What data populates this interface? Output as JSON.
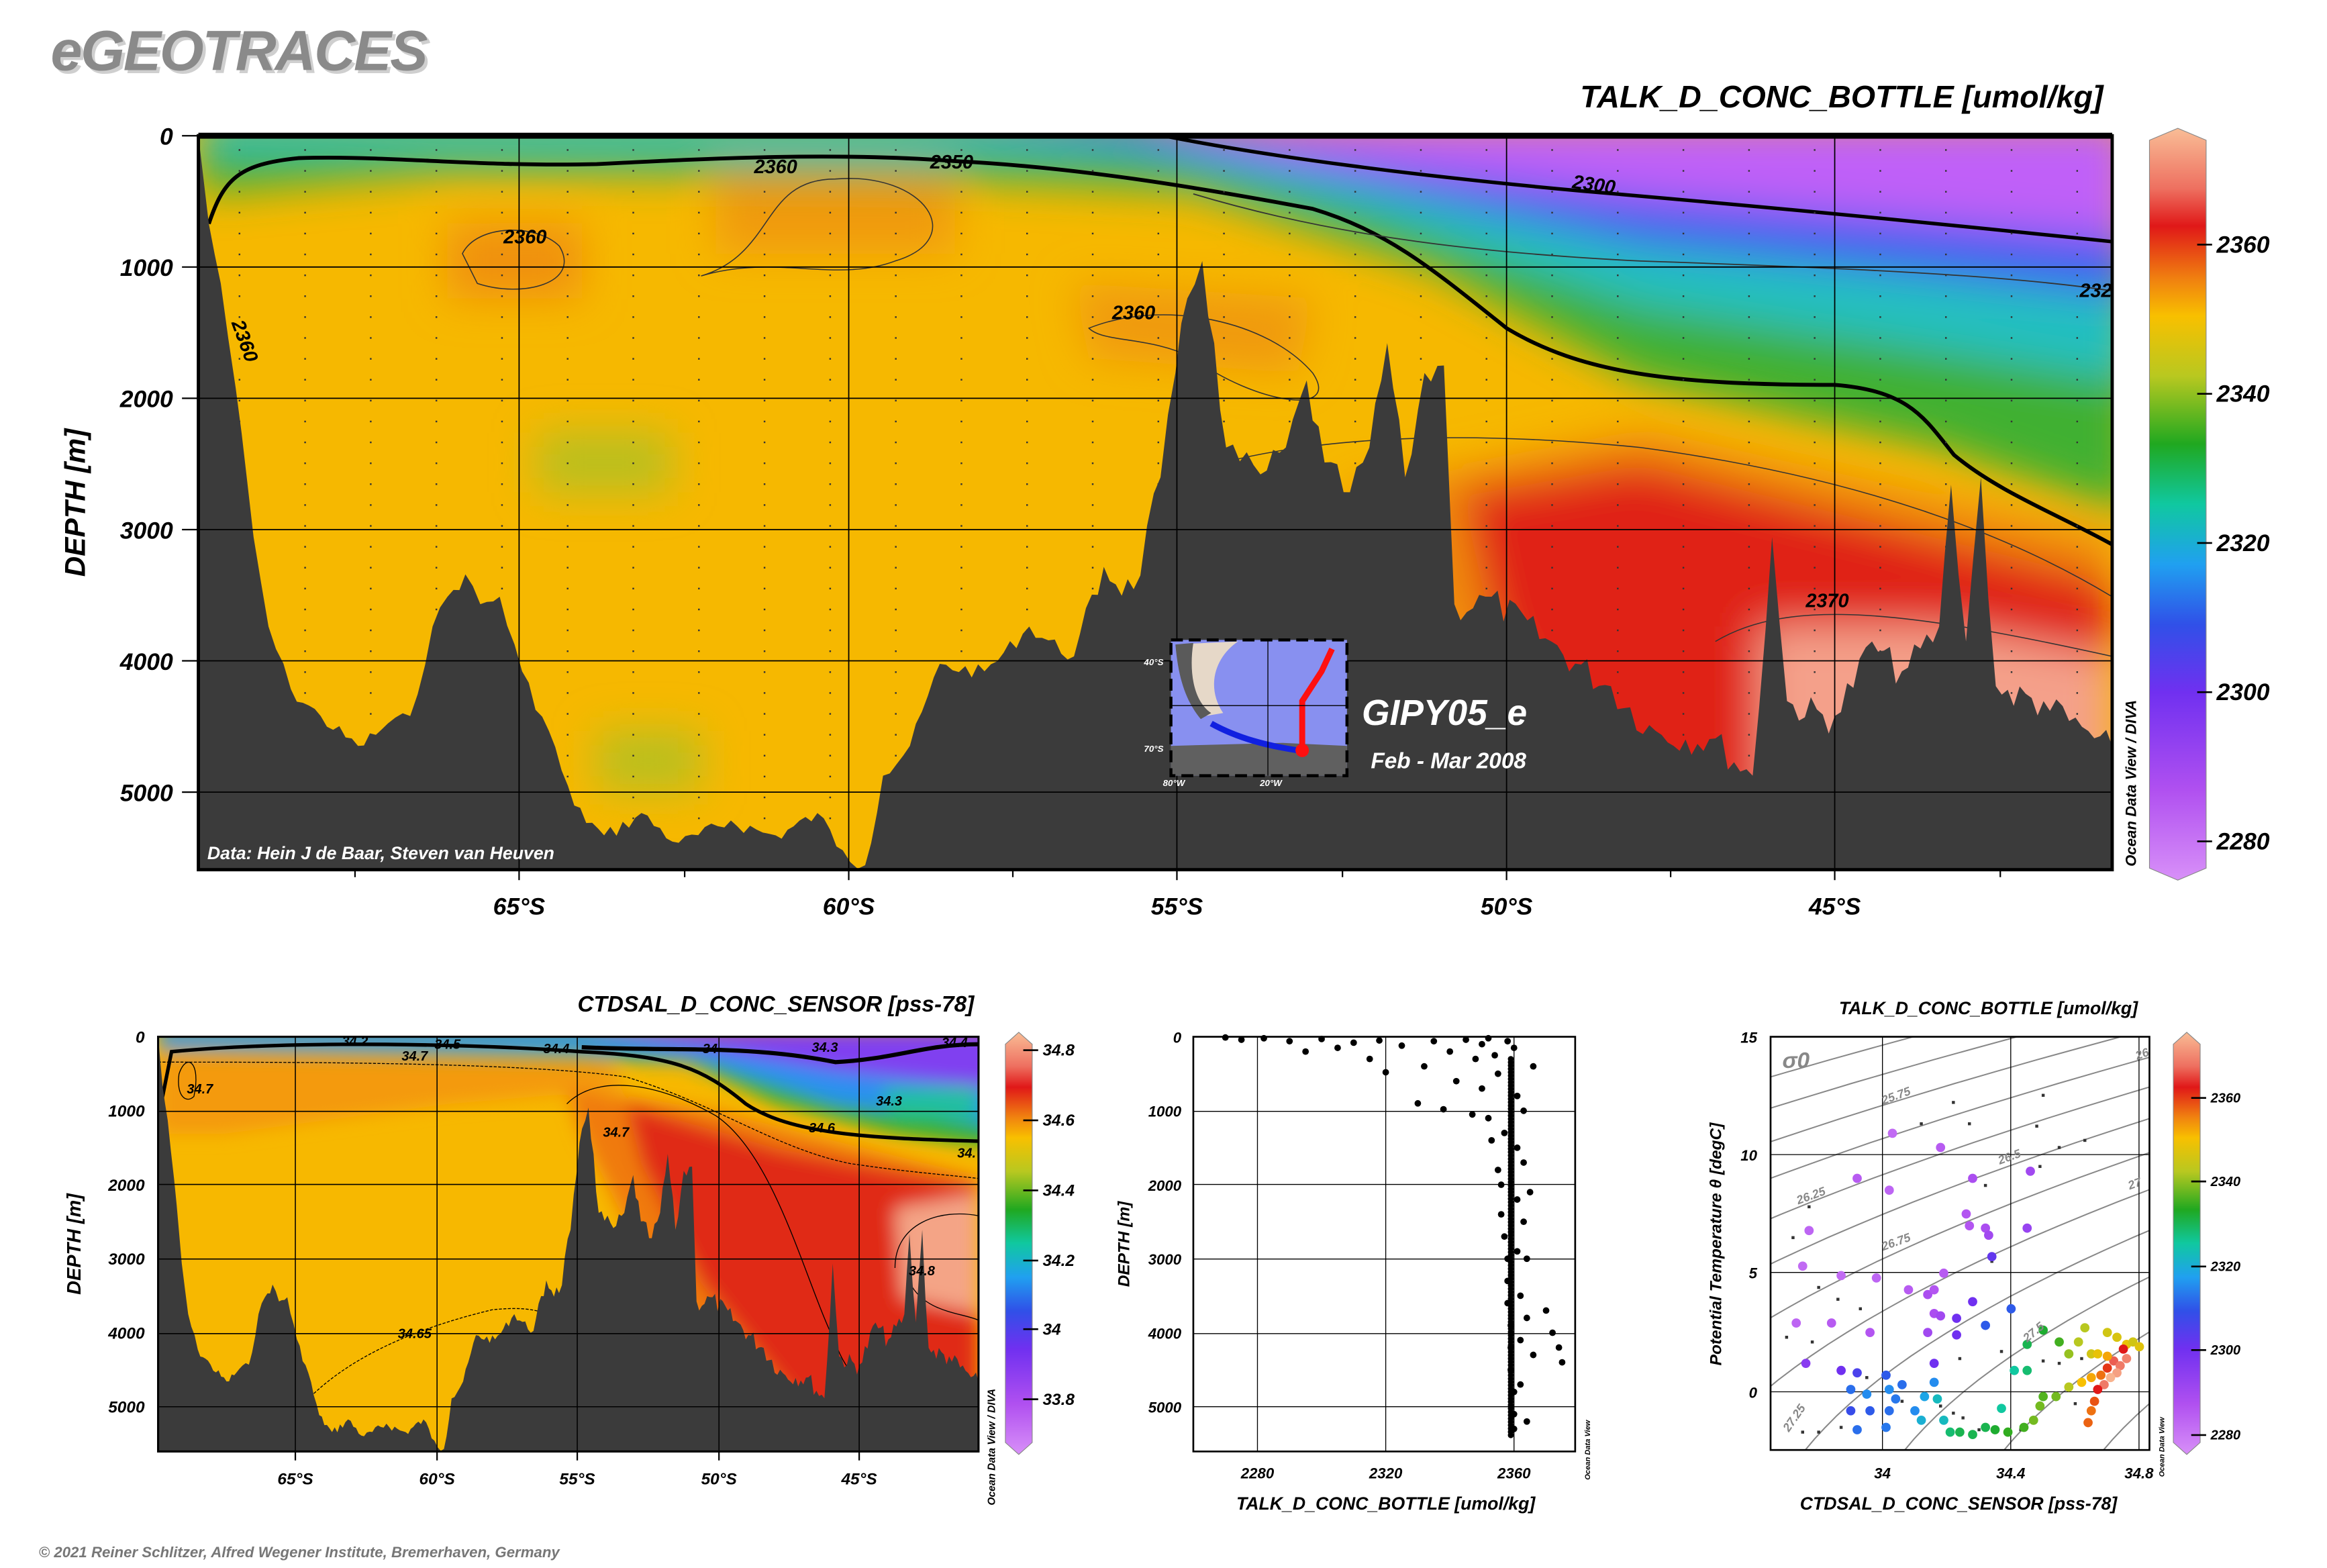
{
  "logo": "eGEOTRACES",
  "credit": "© 2021 Reiner Schlitzer, Alfred Wegener Institute, Bremerhaven, Germany",
  "chart_data": [
    {
      "type": "heatmap",
      "name": "main-section",
      "title": "TALK_D_CONC_BOTTLE [umol/kg]",
      "ylabel": "DEPTH [m]",
      "xlabel": "",
      "x_ticks": [
        "65°S",
        "60°S",
        "55°S",
        "50°S",
        "45°S"
      ],
      "y_ticks": [
        "0",
        "1000",
        "2000",
        "3000",
        "4000",
        "5000"
      ],
      "ylim": [
        0,
        5600
      ],
      "xlim_lat": [
        -69.9,
        -40.8
      ],
      "colorbar": {
        "ticks": [
          "2360",
          "2340",
          "2320",
          "2300",
          "2280"
        ],
        "range": [
          2275,
          2375
        ]
      },
      "contour_labels": [
        "2360",
        "2350",
        "2360",
        "2300",
        "2360",
        "2360",
        "2370",
        "232"
      ],
      "data_credit": "Data: Hein J de Baar, Steven van Heuven",
      "watermark": "Ocean Data View / DIVA",
      "cruise": "GIPY05_e",
      "period": "Feb - Mar 2008",
      "inset_labels": [
        "40°S",
        "70°S",
        "80°W",
        "20°W"
      ]
    },
    {
      "type": "heatmap",
      "name": "salinity-section",
      "title": "CTDSAL_D_CONC_SENSOR [pss-78]",
      "ylabel": "DEPTH [m]",
      "x_ticks": [
        "65°S",
        "60°S",
        "55°S",
        "50°S",
        "45°S"
      ],
      "y_ticks": [
        "0",
        "1000",
        "2000",
        "3000",
        "4000",
        "5000"
      ],
      "colorbar": {
        "ticks": [
          "34.8",
          "34.6",
          "34.4",
          "34.2",
          "34",
          "33.8"
        ],
        "range": [
          33.7,
          34.85
        ]
      },
      "contour_labels": [
        "34.7",
        "34.7",
        "34.5",
        "34.2",
        "34.4",
        "34",
        "34.3",
        "34.4",
        "34.3",
        "34.6",
        "34.7",
        "34.",
        "34.65",
        "34.8"
      ],
      "watermark": "Ocean Data View / DIVA"
    },
    {
      "type": "scatter",
      "name": "talk-depth-profile",
      "xlabel": "TALK_D_CONC_BOTTLE [umol/kg]",
      "ylabel": "DEPTH [m]",
      "x_ticks": [
        "2280",
        "2320",
        "2360"
      ],
      "y_ticks": [
        "0",
        "1000",
        "2000",
        "3000",
        "4000",
        "5000"
      ],
      "xlim": [
        2260,
        2380
      ],
      "ylim": [
        0,
        5600
      ],
      "watermark": "Ocean Data View",
      "points": [
        [
          2270,
          10
        ],
        [
          2275,
          40
        ],
        [
          2282,
          20
        ],
        [
          2290,
          60
        ],
        [
          2295,
          200
        ],
        [
          2300,
          30
        ],
        [
          2305,
          150
        ],
        [
          2310,
          80
        ],
        [
          2315,
          300
        ],
        [
          2318,
          50
        ],
        [
          2320,
          480
        ],
        [
          2325,
          120
        ],
        [
          2330,
          900
        ],
        [
          2332,
          400
        ],
        [
          2335,
          60
        ],
        [
          2338,
          980
        ],
        [
          2340,
          200
        ],
        [
          2342,
          600
        ],
        [
          2345,
          40
        ],
        [
          2347,
          1050
        ],
        [
          2348,
          300
        ],
        [
          2350,
          100
        ],
        [
          2350,
          700
        ],
        [
          2352,
          1100
        ],
        [
          2353,
          1400
        ],
        [
          2354,
          250
        ],
        [
          2355,
          500
        ],
        [
          2355,
          1800
        ],
        [
          2356,
          2000
        ],
        [
          2356,
          2400
        ],
        [
          2357,
          1300
        ],
        [
          2357,
          2700
        ],
        [
          2358,
          3000
        ],
        [
          2358,
          3300
        ],
        [
          2358,
          3600
        ],
        [
          2359,
          3900
        ],
        [
          2359,
          4200
        ],
        [
          2359,
          4500
        ],
        [
          2360,
          4800
        ],
        [
          2360,
          5100
        ],
        [
          2360,
          5300
        ],
        [
          2361,
          800
        ],
        [
          2361,
          1500
        ],
        [
          2361,
          2200
        ],
        [
          2361,
          2900
        ],
        [
          2362,
          3500
        ],
        [
          2362,
          4100
        ],
        [
          2362,
          4700
        ],
        [
          2363,
          1000
        ],
        [
          2363,
          1700
        ],
        [
          2363,
          2500
        ],
        [
          2364,
          3000
        ],
        [
          2364,
          3800
        ],
        [
          2364,
          5200
        ],
        [
          2365,
          2100
        ],
        [
          2366,
          4300
        ],
        [
          2370,
          3700
        ],
        [
          2372,
          4000
        ],
        [
          2374,
          4200
        ],
        [
          2375,
          4400
        ],
        [
          2366,
          400
        ],
        [
          2360,
          150
        ],
        [
          2358,
          60
        ],
        [
          2352,
          20
        ]
      ]
    },
    {
      "type": "scatter",
      "name": "ts-diagram",
      "title": "TALK_D_CONC_BOTTLE [umol/kg]",
      "xlabel": "CTDSAL_D_CONC_SENSOR [pss-78]",
      "ylabel": "Potential Temperature θ [degC]",
      "sigma_label": "σ0",
      "x_ticks": [
        "34",
        "34.4",
        "34.8"
      ],
      "y_ticks": [
        "15",
        "10",
        "5",
        "0"
      ],
      "xlim": [
        33.65,
        34.83
      ],
      "ylim": [
        -2.45,
        15
      ],
      "colorbar": {
        "ticks": [
          "2360",
          "2340",
          "2320",
          "2300",
          "2280"
        ],
        "range": [
          2275,
          2375
        ]
      },
      "isopycnal_labels": [
        "25.75",
        "26.25",
        "26.5",
        "26.75",
        "27",
        "27.25",
        "27.5",
        "26"
      ],
      "watermark": "Ocean Data View",
      "points": [
        [
          34.03,
          10.9,
          2282
        ],
        [
          34.18,
          10.3,
          2285
        ],
        [
          33.92,
          9.0,
          2285
        ],
        [
          34.02,
          8.5,
          2283
        ],
        [
          34.28,
          9.0,
          2288
        ],
        [
          34.46,
          9.3,
          2290
        ],
        [
          33.77,
          6.8,
          2283
        ],
        [
          34.26,
          7.5,
          2286
        ],
        [
          34.27,
          7.0,
          2286
        ],
        [
          34.32,
          6.9,
          2288
        ],
        [
          34.33,
          6.6,
          2290
        ],
        [
          34.45,
          6.9,
          2292
        ],
        [
          33.75,
          5.3,
          2282
        ],
        [
          33.87,
          4.9,
          2282
        ],
        [
          33.98,
          4.8,
          2283
        ],
        [
          34.19,
          5.0,
          2285
        ],
        [
          34.08,
          4.3,
          2285
        ],
        [
          34.14,
          4.1,
          2288
        ],
        [
          34.16,
          4.3,
          2286
        ],
        [
          34.16,
          3.3,
          2288
        ],
        [
          34.18,
          3.2,
          2290
        ],
        [
          34.23,
          3.1,
          2300
        ],
        [
          34.28,
          3.8,
          2300
        ],
        [
          34.34,
          5.7,
          2302
        ],
        [
          34.4,
          3.5,
          2310
        ],
        [
          34.32,
          2.8,
          2310
        ],
        [
          33.73,
          2.9,
          2283
        ],
        [
          33.84,
          2.9,
          2285
        ],
        [
          33.96,
          2.5,
          2286
        ],
        [
          34.14,
          2.5,
          2290
        ],
        [
          34.23,
          2.4,
          2300
        ],
        [
          33.76,
          1.2,
          2295
        ],
        [
          33.87,
          0.9,
          2300
        ],
        [
          33.92,
          0.8,
          2305
        ],
        [
          34.01,
          0.7,
          2310
        ],
        [
          34.06,
          0.3,
          2312
        ],
        [
          34.16,
          0.4,
          2315
        ],
        [
          34.16,
          1.2,
          2300
        ],
        [
          33.9,
          0.1,
          2312
        ],
        [
          33.95,
          -0.1,
          2315
        ],
        [
          34.02,
          0.1,
          2315
        ],
        [
          34.04,
          -0.3,
          2313
        ],
        [
          34.02,
          -0.8,
          2312
        ],
        [
          33.96,
          -0.8,
          2310
        ],
        [
          33.9,
          -0.8,
          2308
        ],
        [
          34.1,
          -0.8,
          2315
        ],
        [
          34.13,
          -0.2,
          2318
        ],
        [
          34.17,
          -0.3,
          2322
        ],
        [
          34.12,
          -1.2,
          2320
        ],
        [
          33.92,
          -1.6,
          2312
        ],
        [
          34.01,
          -1.5,
          2313
        ],
        [
          34.19,
          -1.2,
          2322
        ],
        [
          34.21,
          -1.7,
          2328
        ],
        [
          34.24,
          -1.7,
          2330
        ],
        [
          34.28,
          -1.8,
          2330
        ],
        [
          34.32,
          -1.5,
          2330
        ],
        [
          34.35,
          -1.6,
          2332
        ],
        [
          34.37,
          -0.7,
          2325
        ],
        [
          34.39,
          -1.7,
          2334
        ],
        [
          34.44,
          -1.5,
          2335
        ],
        [
          34.47,
          -1.2,
          2338
        ],
        [
          34.49,
          -0.6,
          2338
        ],
        [
          34.5,
          -0.2,
          2336
        ],
        [
          34.54,
          -0.2,
          2338
        ],
        [
          34.58,
          0.2,
          2342
        ],
        [
          34.41,
          0.9,
          2325
        ],
        [
          34.45,
          0.9,
          2328
        ],
        [
          34.45,
          2.0,
          2330
        ],
        [
          34.5,
          2.6,
          2332
        ],
        [
          34.55,
          2.1,
          2335
        ],
        [
          34.58,
          1.6,
          2340
        ],
        [
          34.61,
          2.1,
          2342
        ],
        [
          34.63,
          2.7,
          2342
        ],
        [
          34.65,
          1.6,
          2345
        ],
        [
          34.67,
          1.6,
          2348
        ],
        [
          34.7,
          2.5,
          2345
        ],
        [
          34.73,
          2.3,
          2346
        ],
        [
          34.76,
          2.0,
          2348
        ],
        [
          34.78,
          2.1,
          2345
        ],
        [
          34.8,
          1.9,
          2347
        ],
        [
          34.62,
          0.4,
          2350
        ],
        [
          34.65,
          0.6,
          2352
        ],
        [
          34.68,
          0.7,
          2356
        ],
        [
          34.7,
          1.0,
          2360
        ],
        [
          34.72,
          1.3,
          2366
        ],
        [
          34.74,
          1.1,
          2368
        ],
        [
          34.76,
          1.4,
          2369
        ],
        [
          34.73,
          0.8,
          2372
        ],
        [
          34.71,
          0.6,
          2374
        ],
        [
          34.69,
          0.3,
          2368
        ],
        [
          34.67,
          0.1,
          2362
        ],
        [
          34.66,
          -0.4,
          2358
        ],
        [
          34.65,
          -0.8,
          2356
        ],
        [
          34.64,
          -1.3,
          2357
        ],
        [
          34.75,
          1.8,
          2362
        ],
        [
          34.7,
          1.5,
          2352
        ]
      ],
      "dots": [
        [
          33.77,
          7.8
        ],
        [
          33.72,
          6.5
        ],
        [
          34.22,
          12.2
        ],
        [
          34.12,
          11.3
        ],
        [
          34.27,
          11.3
        ],
        [
          34.5,
          12.5
        ],
        [
          34.48,
          11.2
        ],
        [
          34.55,
          10.3
        ],
        [
          34.63,
          10.6
        ],
        [
          34.32,
          8.7
        ],
        [
          34.49,
          9.5
        ],
        [
          34.34,
          5.5
        ],
        [
          33.8,
          4.4
        ],
        [
          33.86,
          3.9
        ],
        [
          33.93,
          3.5
        ],
        [
          33.7,
          2.3
        ],
        [
          33.78,
          2.1
        ],
        [
          34.24,
          1.4
        ],
        [
          34.37,
          1.7
        ],
        [
          34.4,
          3.5
        ],
        [
          34.5,
          1.3
        ],
        [
          34.55,
          1.2
        ],
        [
          34.62,
          1.4
        ],
        [
          33.95,
          0.6
        ],
        [
          34.06,
          -0.4
        ],
        [
          34.18,
          -0.6
        ],
        [
          34.22,
          -0.9
        ],
        [
          34.25,
          -1.1
        ],
        [
          34.3,
          -1.6
        ],
        [
          33.75,
          -1.7
        ],
        [
          33.8,
          -1.7
        ],
        [
          33.87,
          -1.5
        ],
        [
          34.43,
          -1.6
        ],
        [
          34.6,
          -0.5
        ]
      ]
    }
  ],
  "colors": {
    "land": "#3b3b3b",
    "accent_red": "#ff1010",
    "track_blue": "#0010e0"
  }
}
